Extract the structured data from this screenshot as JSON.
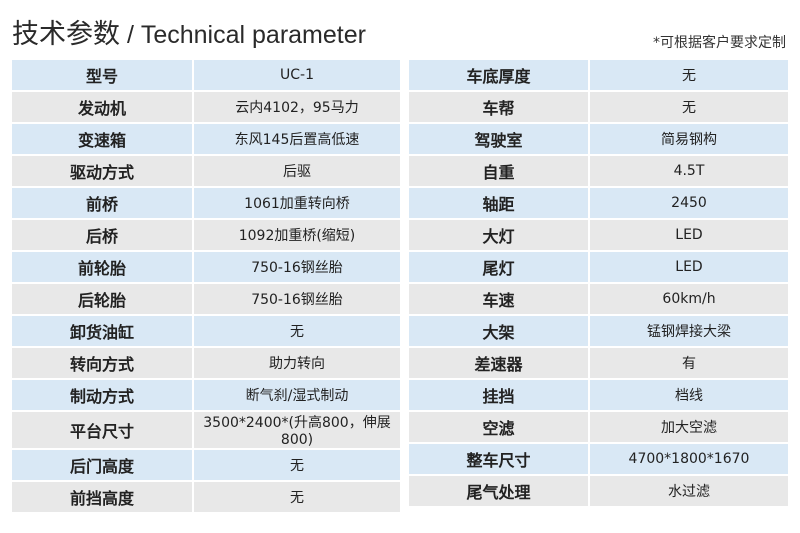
{
  "header": {
    "title_cn": "技术参数",
    "separator": " / ",
    "title_en": "Technical parameter",
    "note": "*可根据客户要求定制"
  },
  "left": [
    {
      "k": "型号",
      "v": "UC-1"
    },
    {
      "k": "发动机",
      "v": "云内4102，95马力"
    },
    {
      "k": "变速箱",
      "v": "东风145后置高低速"
    },
    {
      "k": "驱动方式",
      "v": "后驱"
    },
    {
      "k": "前桥",
      "v": "1061加重转向桥"
    },
    {
      "k": "后桥",
      "v": "1092加重桥(缩短)"
    },
    {
      "k": "前轮胎",
      "v": "750-16钢丝胎"
    },
    {
      "k": "后轮胎",
      "v": "750-16钢丝胎"
    },
    {
      "k": "卸货油缸",
      "v": "无"
    },
    {
      "k": "转向方式",
      "v": "助力转向"
    },
    {
      "k": "制动方式",
      "v": "断气刹/湿式制动"
    },
    {
      "k": "平台尺寸",
      "v": "3500*2400*(升高800，伸展800)"
    },
    {
      "k": "后门高度",
      "v": "无"
    },
    {
      "k": "前挡高度",
      "v": "无"
    }
  ],
  "right": [
    {
      "k": "车底厚度",
      "v": "无"
    },
    {
      "k": "车帮",
      "v": "无"
    },
    {
      "k": "驾驶室",
      "v": "简易钢构"
    },
    {
      "k": "自重",
      "v": "4.5T"
    },
    {
      "k": "轴距",
      "v": "2450"
    },
    {
      "k": "大灯",
      "v": "LED"
    },
    {
      "k": "尾灯",
      "v": "LED"
    },
    {
      "k": "车速",
      "v": "60km/h"
    },
    {
      "k": "大架",
      "v": "锰钢焊接大梁"
    },
    {
      "k": "差速器",
      "v": "有"
    },
    {
      "k": "挂挡",
      "v": "档线"
    },
    {
      "k": "空滤",
      "v": "加大空滤"
    },
    {
      "k": "整车尺寸",
      "v": "4700*1800*1670"
    },
    {
      "k": "尾气处理",
      "v": "水过滤"
    }
  ]
}
